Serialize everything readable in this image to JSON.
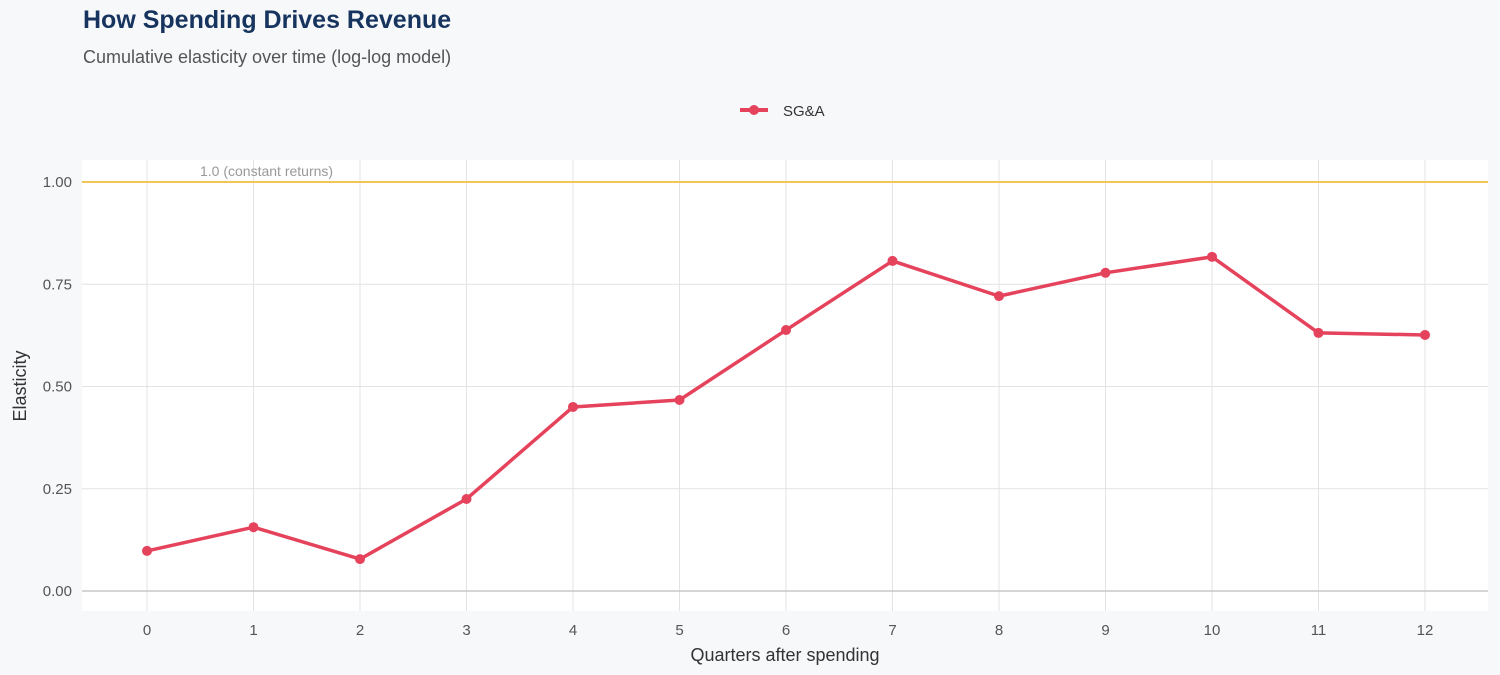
{
  "chart_data": {
    "type": "line",
    "title": "How Spending Drives Revenue",
    "subtitle": "Cumulative elasticity over time (log-log model)",
    "xlabel": "Quarters after spending",
    "ylabel": "Elasticity",
    "x": [
      0,
      1,
      2,
      3,
      4,
      5,
      6,
      7,
      8,
      9,
      10,
      11,
      12
    ],
    "xlim": [
      -0.6,
      12.6
    ],
    "ylim": [
      -0.05,
      1.05
    ],
    "yticks": [
      0.0,
      0.25,
      0.5,
      0.75,
      1.0
    ],
    "ytick_labels": [
      "0.00",
      "0.25",
      "0.50",
      "0.75",
      "1.00"
    ],
    "grid": true,
    "legend_position": "top",
    "series": [
      {
        "name": "SG&A",
        "color": "#e5425c",
        "values": [
          0.098,
          0.156,
          0.078,
          0.225,
          0.45,
          0.467,
          0.638,
          0.807,
          0.721,
          0.778,
          0.817,
          0.631,
          0.626
        ]
      }
    ],
    "reference_line": {
      "y": 1.0,
      "label": "1.0 (constant returns)",
      "color": "#f2c55c"
    }
  }
}
